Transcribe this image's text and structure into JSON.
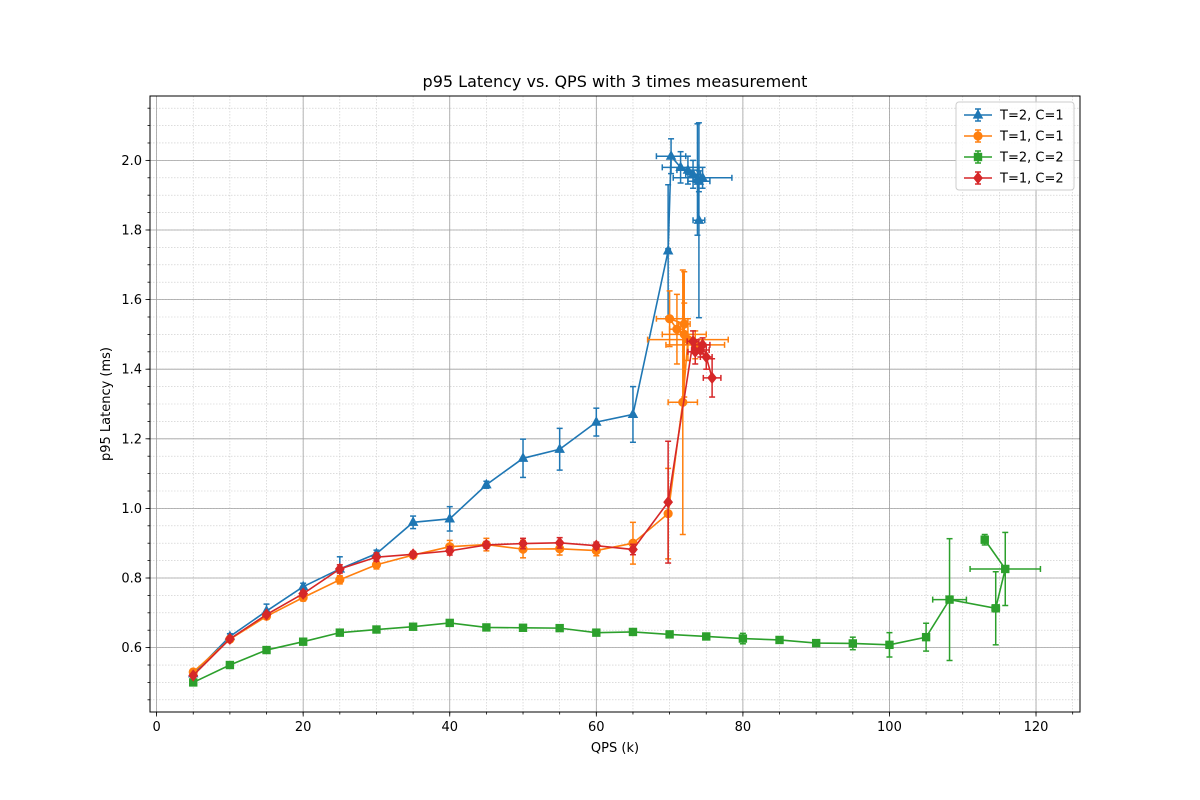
{
  "chart_data": {
    "type": "line",
    "title": "p95 Latency vs. QPS with 3 times measurement",
    "xlabel": "QPS (k)",
    "ylabel": "p95 Latency (ms)",
    "xlim": [
      -0.9,
      126
    ],
    "ylim": [
      0.415,
      2.185
    ],
    "x_ticks": [
      0,
      20,
      40,
      60,
      80,
      100,
      120
    ],
    "y_ticks": [
      0.6,
      0.8,
      1.0,
      1.2,
      1.4,
      1.6,
      1.8,
      2.0
    ],
    "y_tick_labels": [
      "0.6",
      "0.8",
      "1.0",
      "1.2",
      "1.4",
      "1.6",
      "1.8",
      "2.0"
    ],
    "x_minor_step": 5,
    "y_minor_step": 0.05,
    "grid": "major and minor",
    "legend_position": "top-right",
    "series": [
      {
        "name": "T=2, C=1",
        "color": "#1f77b4",
        "marker": "triangle",
        "points": [
          {
            "x": 5,
            "y": 0.525,
            "xerr": 0,
            "yerr": 0.005
          },
          {
            "x": 10,
            "y": 0.632,
            "xerr": 0,
            "yerr": 0.008
          },
          {
            "x": 15,
            "y": 0.705,
            "xerr": 0,
            "yerr": 0.02
          },
          {
            "x": 20,
            "y": 0.775,
            "xerr": 0,
            "yerr": 0.01
          },
          {
            "x": 25,
            "y": 0.826,
            "xerr": 0,
            "yerr": 0.035
          },
          {
            "x": 30,
            "y": 0.87,
            "xerr": 0,
            "yerr": 0.01
          },
          {
            "x": 35,
            "y": 0.96,
            "xerr": 0,
            "yerr": 0.018
          },
          {
            "x": 40,
            "y": 0.97,
            "xerr": 0,
            "yerr": 0.035
          },
          {
            "x": 45,
            "y": 1.068,
            "xerr": 0,
            "yerr": 0.01
          },
          {
            "x": 50,
            "y": 1.144,
            "xerr": 0,
            "yerr": 0.055
          },
          {
            "x": 55,
            "y": 1.17,
            "xerr": 0,
            "yerr": 0.06
          },
          {
            "x": 60,
            "y": 1.248,
            "xerr": 0,
            "yerr": 0.04
          },
          {
            "x": 65,
            "y": 1.27,
            "xerr": 0,
            "yerr": 0.08
          },
          {
            "x": 69.8,
            "y": 1.74,
            "xerr": 0.3,
            "yerr": 0.19
          },
          {
            "x": 70.2,
            "y": 2.012,
            "xerr": 2.0,
            "yerr": 0.05
          },
          {
            "x": 71.5,
            "y": 1.98,
            "xerr": 2.5,
            "yerr": 0.045
          },
          {
            "x": 72.5,
            "y": 1.972,
            "xerr": 1.5,
            "yerr": 0.04
          },
          {
            "x": 73.2,
            "y": 1.96,
            "xerr": 1.0,
            "yerr": 0.04
          },
          {
            "x": 74.0,
            "y": 1.94,
            "xerr": 1.5,
            "yerr": 0.03
          },
          {
            "x": 74.5,
            "y": 1.95,
            "xerr": 4.0,
            "yerr": 0.03
          },
          {
            "x": 73.8,
            "y": 1.945,
            "xerr": 0.6,
            "yerr": 0.16
          },
          {
            "x": 74.0,
            "y": 1.828,
            "xerr": 0.8,
            "yerr": 0.28
          }
        ]
      },
      {
        "name": "T=1, C=1",
        "color": "#ff7f0e",
        "marker": "circle",
        "points": [
          {
            "x": 5,
            "y": 0.53,
            "xerr": 0,
            "yerr": 0.008
          },
          {
            "x": 10,
            "y": 0.624,
            "xerr": 0,
            "yerr": 0.008
          },
          {
            "x": 15,
            "y": 0.69,
            "xerr": 0,
            "yerr": 0.008
          },
          {
            "x": 20,
            "y": 0.744,
            "xerr": 0,
            "yerr": 0.01
          },
          {
            "x": 25,
            "y": 0.795,
            "xerr": 0,
            "yerr": 0.012
          },
          {
            "x": 30,
            "y": 0.838,
            "xerr": 0,
            "yerr": 0.012
          },
          {
            "x": 35,
            "y": 0.866,
            "xerr": 0,
            "yerr": 0.01
          },
          {
            "x": 40,
            "y": 0.89,
            "xerr": 0,
            "yerr": 0.018
          },
          {
            "x": 45,
            "y": 0.896,
            "xerr": 0,
            "yerr": 0.018
          },
          {
            "x": 50,
            "y": 0.883,
            "xerr": 0,
            "yerr": 0.025
          },
          {
            "x": 55,
            "y": 0.884,
            "xerr": 0,
            "yerr": 0.018
          },
          {
            "x": 60,
            "y": 0.879,
            "xerr": 0,
            "yerr": 0.015
          },
          {
            "x": 65,
            "y": 0.9,
            "xerr": 0,
            "yerr": 0.06
          },
          {
            "x": 69.8,
            "y": 0.985,
            "xerr": 0,
            "yerr": 0.13
          },
          {
            "x": 71.8,
            "y": 1.305,
            "xerr": 2.0,
            "yerr": 0.38
          },
          {
            "x": 72.5,
            "y": 1.485,
            "xerr": 5.5,
            "yerr": 0.06
          },
          {
            "x": 73.5,
            "y": 1.47,
            "xerr": 4.0,
            "yerr": 0.04
          },
          {
            "x": 72.0,
            "y": 1.5,
            "xerr": 3.0,
            "yerr": 0.18
          },
          {
            "x": 71.0,
            "y": 1.515,
            "xerr": 1.0,
            "yerr": 0.1
          },
          {
            "x": 70.0,
            "y": 1.545,
            "xerr": 1.8,
            "yerr": 0.08
          },
          {
            "x": 72.0,
            "y": 1.53,
            "xerr": 0.8,
            "yerr": 0.06
          }
        ]
      },
      {
        "name": "T=2, C=2",
        "color": "#2ca02c",
        "marker": "square",
        "points": [
          {
            "x": 5,
            "y": 0.5,
            "xerr": 0,
            "yerr": 0.005
          },
          {
            "x": 10,
            "y": 0.55,
            "xerr": 0,
            "yerr": 0.004
          },
          {
            "x": 15,
            "y": 0.593,
            "xerr": 0,
            "yerr": 0.004
          },
          {
            "x": 20,
            "y": 0.617,
            "xerr": 0,
            "yerr": 0.004
          },
          {
            "x": 25,
            "y": 0.643,
            "xerr": 0,
            "yerr": 0.004
          },
          {
            "x": 30,
            "y": 0.652,
            "xerr": 0,
            "yerr": 0.004
          },
          {
            "x": 35,
            "y": 0.66,
            "xerr": 0,
            "yerr": 0.004
          },
          {
            "x": 40,
            "y": 0.671,
            "xerr": 0,
            "yerr": 0.006
          },
          {
            "x": 45,
            "y": 0.658,
            "xerr": 0,
            "yerr": 0.004
          },
          {
            "x": 50,
            "y": 0.657,
            "xerr": 0,
            "yerr": 0.004
          },
          {
            "x": 55,
            "y": 0.656,
            "xerr": 0,
            "yerr": 0.004
          },
          {
            "x": 60,
            "y": 0.643,
            "xerr": 0,
            "yerr": 0.004
          },
          {
            "x": 65,
            "y": 0.645,
            "xerr": 0,
            "yerr": 0.004
          },
          {
            "x": 70,
            "y": 0.638,
            "xerr": 0,
            "yerr": 0.004
          },
          {
            "x": 75,
            "y": 0.632,
            "xerr": 0,
            "yerr": 0.004
          },
          {
            "x": 80,
            "y": 0.626,
            "xerr": 0,
            "yerr": 0.015
          },
          {
            "x": 85,
            "y": 0.622,
            "xerr": 0,
            "yerr": 0.004
          },
          {
            "x": 90,
            "y": 0.613,
            "xerr": 0,
            "yerr": 0.004
          },
          {
            "x": 95,
            "y": 0.612,
            "xerr": 0,
            "yerr": 0.018
          },
          {
            "x": 100,
            "y": 0.608,
            "xerr": 0,
            "yerr": 0.035
          },
          {
            "x": 105,
            "y": 0.63,
            "xerr": 0,
            "yerr": 0.04
          },
          {
            "x": 108.2,
            "y": 0.738,
            "xerr": 2.3,
            "yerr": 0.175
          },
          {
            "x": 114.5,
            "y": 0.713,
            "xerr": 0.5,
            "yerr": 0.105
          },
          {
            "x": 115.8,
            "y": 0.826,
            "xerr": 4.8,
            "yerr": 0.105
          },
          {
            "x": 113.0,
            "y": 0.91,
            "xerr": 0.4,
            "yerr": 0.015
          }
        ]
      },
      {
        "name": "T=1, C=2",
        "color": "#d62728",
        "marker": "diamond",
        "points": [
          {
            "x": 5,
            "y": 0.52,
            "xerr": 0,
            "yerr": 0.004
          },
          {
            "x": 10,
            "y": 0.625,
            "xerr": 0,
            "yerr": 0.006
          },
          {
            "x": 15,
            "y": 0.695,
            "xerr": 0,
            "yerr": 0.006
          },
          {
            "x": 20,
            "y": 0.755,
            "xerr": 0,
            "yerr": 0.008
          },
          {
            "x": 25,
            "y": 0.826,
            "xerr": 0,
            "yerr": 0.012
          },
          {
            "x": 30,
            "y": 0.86,
            "xerr": 0,
            "yerr": 0.012
          },
          {
            "x": 35,
            "y": 0.868,
            "xerr": 0,
            "yerr": 0.008
          },
          {
            "x": 40,
            "y": 0.878,
            "xerr": 0,
            "yerr": 0.012
          },
          {
            "x": 45,
            "y": 0.895,
            "xerr": 0,
            "yerr": 0.01
          },
          {
            "x": 50,
            "y": 0.899,
            "xerr": 0,
            "yerr": 0.015
          },
          {
            "x": 55,
            "y": 0.901,
            "xerr": 0,
            "yerr": 0.015
          },
          {
            "x": 60,
            "y": 0.893,
            "xerr": 0,
            "yerr": 0.01
          },
          {
            "x": 65,
            "y": 0.882,
            "xerr": 0,
            "yerr": 0.015
          },
          {
            "x": 69.8,
            "y": 1.018,
            "xerr": 0,
            "yerr": 0.175
          },
          {
            "x": 73.2,
            "y": 1.48,
            "xerr": 0.8,
            "yerr": 0.03
          },
          {
            "x": 73.5,
            "y": 1.45,
            "xerr": 1.0,
            "yerr": 0.035
          },
          {
            "x": 74.5,
            "y": 1.47,
            "xerr": 1.0,
            "yerr": 0.02
          },
          {
            "x": 74.2,
            "y": 1.455,
            "xerr": 1.2,
            "yerr": 0.02
          },
          {
            "x": 75.0,
            "y": 1.435,
            "xerr": 0.8,
            "yerr": 0.035
          },
          {
            "x": 75.8,
            "y": 1.375,
            "xerr": 1.2,
            "yerr": 0.055
          }
        ]
      }
    ]
  }
}
